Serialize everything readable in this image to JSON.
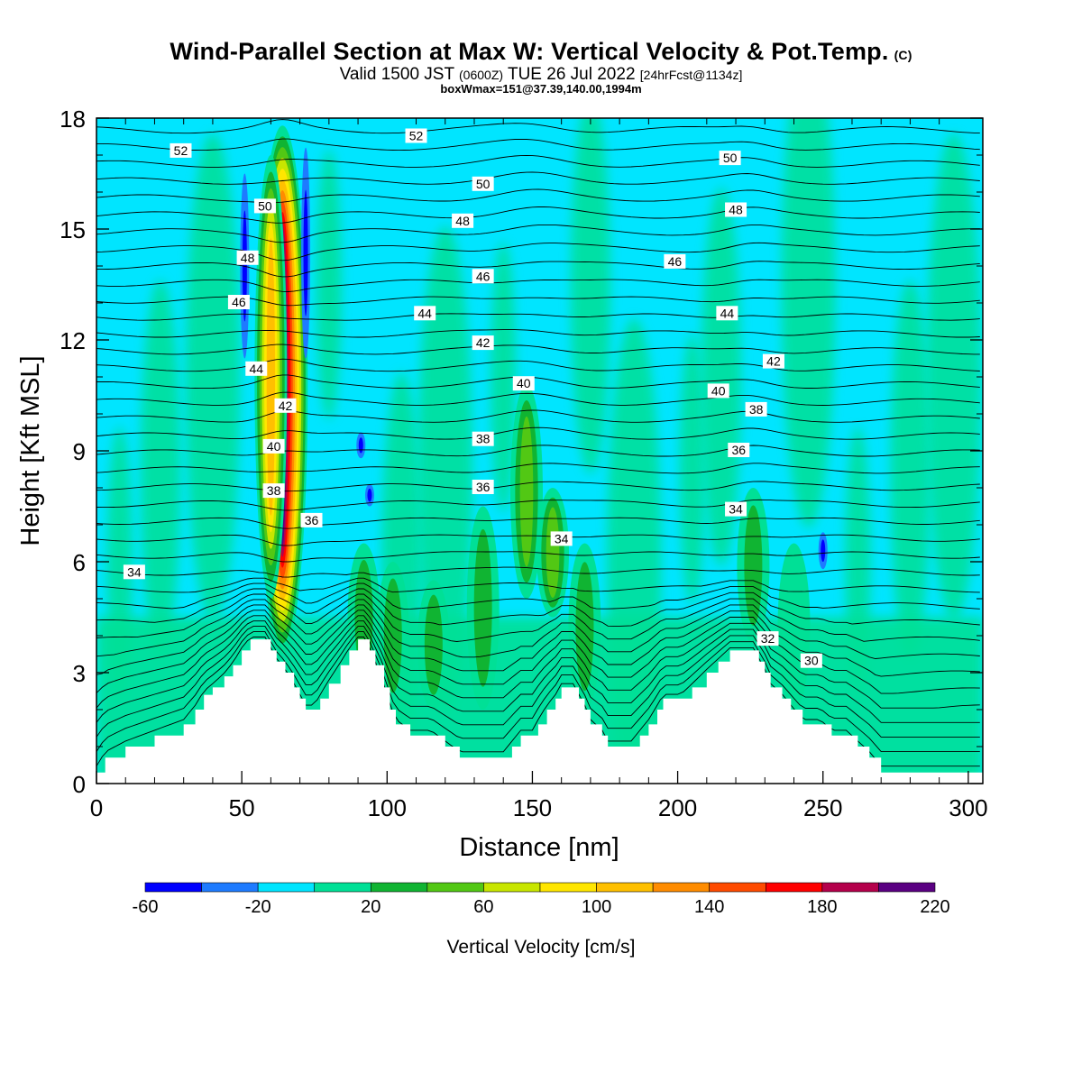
{
  "header": {
    "title": "Wind-Parallel Section at Max W: Vertical Velocity & Pot.Temp.",
    "copyright": "(C)",
    "subtitle_a": "Valid 1500 JST",
    "subtitle_b": "(0600Z)",
    "subtitle_c": "TUE 26 Jul 2022",
    "subtitle_d": "[24hrFcst@1134z]",
    "boxline": "boxWmax=151@37.39,140.00,1994m"
  },
  "chart_data": {
    "type": "heatmap",
    "title": "Wind-Parallel Section at Max W: Vertical Velocity & Pot.Temp.",
    "xlabel": "Distance [nm]",
    "ylabel": "Height [Kft MSL]",
    "xlim": [
      0,
      305
    ],
    "ylim": [
      0,
      18
    ],
    "xticks": [
      "0",
      "50",
      "100",
      "150",
      "200",
      "250",
      "300"
    ],
    "yticks": [
      "0",
      "3",
      "6",
      "9",
      "12",
      "15",
      "18"
    ],
    "colorbar": {
      "label": "Vertical Velocity [cm/s]",
      "ticks": [
        "-60",
        "-20",
        "20",
        "60",
        "100",
        "140",
        "180",
        "220"
      ],
      "bins": [
        {
          "from": -60,
          "to": -40,
          "color": "#0000ff"
        },
        {
          "from": -40,
          "to": -20,
          "color": "#1e7bff"
        },
        {
          "from": -20,
          "to": 0,
          "color": "#00e5ff"
        },
        {
          "from": 0,
          "to": 20,
          "color": "#00e096"
        },
        {
          "from": 20,
          "to": 40,
          "color": "#10b432"
        },
        {
          "from": 40,
          "to": 60,
          "color": "#52c814"
        },
        {
          "from": 60,
          "to": 80,
          "color": "#c8e600"
        },
        {
          "from": 80,
          "to": 100,
          "color": "#ffe600"
        },
        {
          "from": 100,
          "to": 120,
          "color": "#ffc000"
        },
        {
          "from": 120,
          "to": 140,
          "color": "#ff8c00"
        },
        {
          "from": 140,
          "to": 160,
          "color": "#ff4b00"
        },
        {
          "from": 160,
          "to": 180,
          "color": "#ff0000"
        },
        {
          "from": 180,
          "to": 200,
          "color": "#b4004b"
        },
        {
          "from": 200,
          "to": 220,
          "color": "#5a0082"
        }
      ]
    },
    "terrain_kft": [
      [
        0,
        0.3
      ],
      [
        3,
        0.7
      ],
      [
        10,
        1.0
      ],
      [
        20,
        1.3
      ],
      [
        30,
        1.6
      ],
      [
        34,
        2.0
      ],
      [
        37,
        2.4
      ],
      [
        40,
        2.6
      ],
      [
        44,
        2.9
      ],
      [
        47,
        3.2
      ],
      [
        50,
        3.6
      ],
      [
        53,
        3.9
      ],
      [
        58,
        3.9
      ],
      [
        60,
        3.6
      ],
      [
        62,
        3.3
      ],
      [
        65,
        3.0
      ],
      [
        68,
        2.6
      ],
      [
        70,
        2.3
      ],
      [
        72,
        2.0
      ],
      [
        75,
        2.0
      ],
      [
        77,
        2.3
      ],
      [
        80,
        2.7
      ],
      [
        84,
        3.2
      ],
      [
        87,
        3.6
      ],
      [
        90,
        3.9
      ],
      [
        92,
        3.9
      ],
      [
        94,
        3.6
      ],
      [
        96,
        3.2
      ],
      [
        99,
        2.6
      ],
      [
        101,
        2.0
      ],
      [
        103,
        1.6
      ],
      [
        108,
        1.3
      ],
      [
        115,
        1.3
      ],
      [
        120,
        1.0
      ],
      [
        125,
        0.7
      ],
      [
        133,
        0.7
      ],
      [
        140,
        0.7
      ],
      [
        143,
        1.0
      ],
      [
        146,
        1.3
      ],
      [
        150,
        1.3
      ],
      [
        152,
        1.6
      ],
      [
        155,
        2.0
      ],
      [
        158,
        2.3
      ],
      [
        160,
        2.6
      ],
      [
        164,
        2.6
      ],
      [
        166,
        2.3
      ],
      [
        168,
        2.0
      ],
      [
        170,
        1.6
      ],
      [
        174,
        1.3
      ],
      [
        176,
        1.0
      ],
      [
        184,
        1.0
      ],
      [
        187,
        1.3
      ],
      [
        190,
        1.6
      ],
      [
        193,
        2.0
      ],
      [
        195,
        2.3
      ],
      [
        201,
        2.3
      ],
      [
        205,
        2.6
      ],
      [
        210,
        3.0
      ],
      [
        214,
        3.3
      ],
      [
        218,
        3.6
      ],
      [
        226,
        3.6
      ],
      [
        228,
        3.3
      ],
      [
        230,
        3.0
      ],
      [
        232,
        2.6
      ],
      [
        236,
        2.3
      ],
      [
        239,
        2.0
      ],
      [
        243,
        1.6
      ],
      [
        249,
        1.6
      ],
      [
        253,
        1.3
      ],
      [
        258,
        1.3
      ],
      [
        262,
        1.0
      ],
      [
        266,
        0.7
      ],
      [
        270,
        0.3
      ],
      [
        276,
        0.3
      ],
      [
        285,
        0.3
      ],
      [
        290,
        0.3
      ],
      [
        305,
        0.3
      ]
    ],
    "updrafts": [
      {
        "x": 64,
        "bottom": 3.5,
        "top": 17.8,
        "peak": 215
      },
      {
        "x": 60,
        "bottom": 5.0,
        "top": 17.0,
        "peak": 110
      },
      {
        "x": 148,
        "bottom": 5.0,
        "top": 10.8,
        "peak": 50
      },
      {
        "x": 157,
        "bottom": 4.5,
        "top": 8.0,
        "peak": 55
      },
      {
        "x": 133,
        "bottom": 2.0,
        "top": 7.5,
        "peak": 30
      },
      {
        "x": 226,
        "bottom": 3.8,
        "top": 8.0,
        "peak": 35
      },
      {
        "x": 92,
        "bottom": 2.5,
        "top": 6.5,
        "peak": 30
      },
      {
        "x": 102,
        "bottom": 2.0,
        "top": 6.0,
        "peak": 25
      },
      {
        "x": 116,
        "bottom": 2.0,
        "top": 5.5,
        "peak": 25
      },
      {
        "x": 168,
        "bottom": 2.0,
        "top": 6.5,
        "peak": 25
      },
      {
        "x": 240,
        "bottom": 2.0,
        "top": 6.5,
        "peak": 20
      }
    ],
    "downdrafts": [
      {
        "x": 51,
        "bottom": 11.5,
        "top": 16.5,
        "peak": -40
      },
      {
        "x": 72,
        "bottom": 11.5,
        "top": 17.2,
        "peak": -40
      },
      {
        "x": 91,
        "bottom": 8.8,
        "top": 9.5,
        "peak": -30
      },
      {
        "x": 94,
        "bottom": 7.5,
        "top": 8.1,
        "peak": -30
      },
      {
        "x": 250,
        "bottom": 5.8,
        "top": 6.8,
        "peak": -40
      }
    ],
    "theta_contour_labels": [
      {
        "x": 29,
        "y": 17.1,
        "text": "52"
      },
      {
        "x": 110,
        "y": 17.5,
        "text": "52"
      },
      {
        "x": 218,
        "y": 16.9,
        "text": "50"
      },
      {
        "x": 133,
        "y": 16.2,
        "text": "50"
      },
      {
        "x": 58,
        "y": 15.6,
        "text": "50"
      },
      {
        "x": 126,
        "y": 15.2,
        "text": "48"
      },
      {
        "x": 220,
        "y": 15.5,
        "text": "48"
      },
      {
        "x": 52,
        "y": 14.2,
        "text": "48"
      },
      {
        "x": 199,
        "y": 14.1,
        "text": "46"
      },
      {
        "x": 133,
        "y": 13.7,
        "text": "46"
      },
      {
        "x": 49,
        "y": 13.0,
        "text": "46"
      },
      {
        "x": 113,
        "y": 12.7,
        "text": "44"
      },
      {
        "x": 217,
        "y": 12.7,
        "text": "44"
      },
      {
        "x": 55,
        "y": 11.2,
        "text": "44"
      },
      {
        "x": 133,
        "y": 11.9,
        "text": "42"
      },
      {
        "x": 233,
        "y": 11.4,
        "text": "42"
      },
      {
        "x": 65,
        "y": 10.2,
        "text": "42"
      },
      {
        "x": 147,
        "y": 10.8,
        "text": "40"
      },
      {
        "x": 214,
        "y": 10.6,
        "text": "40"
      },
      {
        "x": 61,
        "y": 9.1,
        "text": "40"
      },
      {
        "x": 133,
        "y": 9.3,
        "text": "38"
      },
      {
        "x": 227,
        "y": 10.1,
        "text": "38"
      },
      {
        "x": 61,
        "y": 7.9,
        "text": "38"
      },
      {
        "x": 133,
        "y": 8.0,
        "text": "36"
      },
      {
        "x": 221,
        "y": 9.0,
        "text": "36"
      },
      {
        "x": 74,
        "y": 7.1,
        "text": "36"
      },
      {
        "x": 13,
        "y": 5.7,
        "text": "34"
      },
      {
        "x": 160,
        "y": 6.6,
        "text": "34"
      },
      {
        "x": 220,
        "y": 7.4,
        "text": "34"
      },
      {
        "x": 231,
        "y": 3.9,
        "text": "32"
      },
      {
        "x": 246,
        "y": 3.3,
        "text": "30"
      }
    ]
  }
}
